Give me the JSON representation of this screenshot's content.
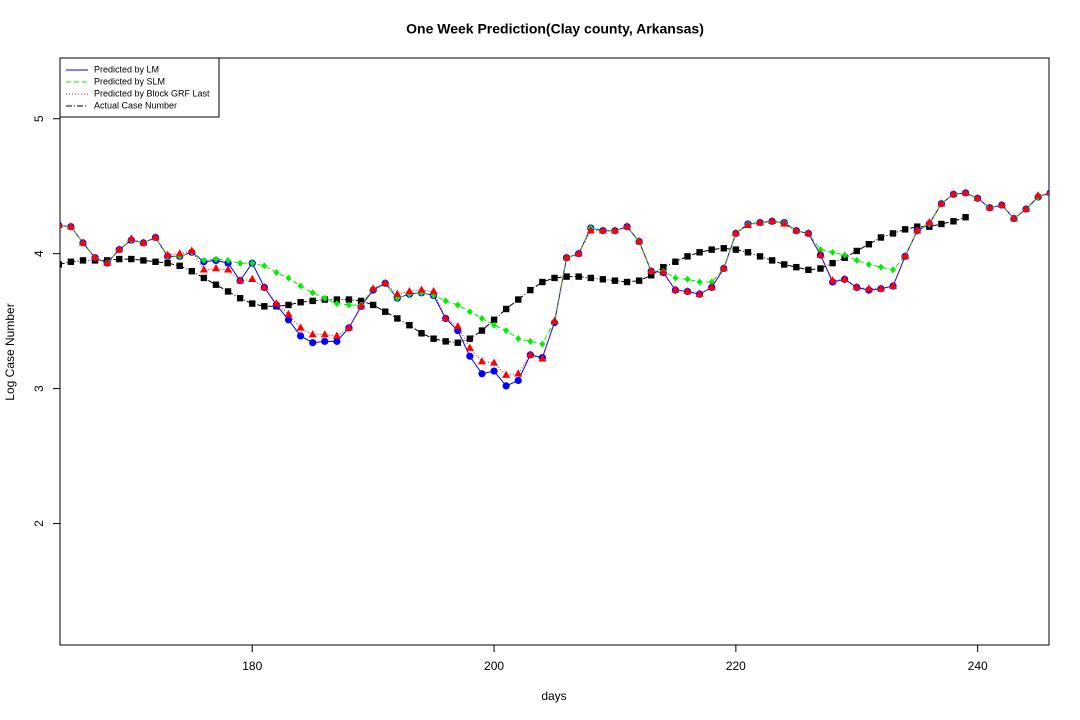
{
  "chart_data": {
    "type": "line",
    "title": "One Week Prediction(Clay county, Arkansas)",
    "xlabel": "days",
    "ylabel": "Log Case Number",
    "xlim": [
      164.1,
      245.9
    ],
    "ylim": [
      1.1,
      5.45
    ],
    "xticks": [
      180,
      200,
      220,
      240
    ],
    "yticks": [
      2,
      3,
      4,
      5
    ],
    "legend": "upper left",
    "x": [
      164,
      165,
      166,
      167,
      168,
      169,
      170,
      171,
      172,
      173,
      174,
      175,
      176,
      177,
      178,
      179,
      180,
      181,
      182,
      183,
      184,
      185,
      186,
      187,
      188,
      189,
      190,
      191,
      192,
      193,
      194,
      195,
      196,
      197,
      198,
      199,
      200,
      201,
      202,
      203,
      204,
      205,
      206,
      207,
      208,
      209,
      210,
      211,
      212,
      213,
      214,
      215,
      216,
      217,
      218,
      219,
      220,
      221,
      222,
      223,
      224,
      225,
      226,
      227,
      228,
      229,
      230,
      231,
      232,
      233,
      234,
      235,
      236,
      237,
      238,
      239,
      240,
      241,
      242,
      243,
      244,
      245,
      246
    ],
    "series": [
      {
        "name": "Predicted by LM",
        "color": "#0000ff",
        "linestyle": "solid",
        "marker": "circle",
        "values": [
          4.21,
          4.2,
          4.08,
          3.97,
          3.93,
          4.03,
          4.1,
          4.08,
          4.12,
          3.98,
          3.98,
          4.01,
          3.94,
          3.95,
          3.93,
          3.8,
          3.93,
          3.75,
          3.62,
          3.51,
          3.39,
          3.34,
          3.35,
          3.35,
          3.45,
          3.61,
          3.73,
          3.78,
          3.67,
          3.7,
          3.71,
          3.69,
          3.52,
          3.43,
          3.24,
          3.11,
          3.13,
          3.02,
          3.06,
          3.25,
          3.23,
          3.49,
          3.97,
          4.0,
          4.19,
          4.17,
          4.17,
          4.2,
          4.09,
          3.87,
          3.86,
          3.73,
          3.72,
          3.7,
          3.75,
          3.89,
          4.15,
          4.22,
          4.23,
          4.24,
          4.23,
          4.17,
          4.15,
          3.99,
          3.79,
          3.81,
          3.75,
          3.73,
          3.74,
          3.76,
          3.98,
          4.17,
          4.22,
          4.37,
          4.44,
          4.45,
          4.41,
          4.34,
          4.36,
          4.26,
          4.33,
          4.42,
          4.45
        ]
      },
      {
        "name": "Predicted by SLM",
        "color": "#00ee00",
        "linestyle": "dashed",
        "marker": "diamond",
        "values": [
          4.21,
          4.2,
          4.08,
          3.97,
          3.93,
          4.03,
          4.1,
          4.08,
          4.12,
          3.98,
          3.98,
          4.01,
          3.95,
          3.96,
          3.95,
          3.93,
          3.93,
          3.91,
          3.86,
          3.82,
          3.76,
          3.71,
          3.67,
          3.63,
          3.62,
          3.62,
          3.74,
          3.78,
          3.67,
          3.7,
          3.71,
          3.69,
          3.65,
          3.62,
          3.57,
          3.52,
          3.47,
          3.43,
          3.37,
          3.35,
          3.33,
          3.5,
          3.97,
          4.0,
          4.19,
          4.17,
          4.17,
          4.2,
          4.09,
          3.87,
          3.87,
          3.82,
          3.81,
          3.79,
          3.79,
          3.89,
          4.15,
          4.22,
          4.23,
          4.24,
          4.23,
          4.17,
          4.15,
          4.03,
          4.01,
          3.99,
          3.95,
          3.92,
          3.9,
          3.88,
          3.98,
          4.17,
          4.22,
          4.37,
          4.44,
          4.45,
          4.41,
          4.34,
          4.36,
          4.26,
          4.33,
          4.42,
          4.45
        ]
      },
      {
        "name": "Predicted by Block GRF Last",
        "color": "#ff0000",
        "linestyle": "dotted",
        "marker": "triangle",
        "values": [
          4.21,
          4.2,
          4.08,
          3.97,
          3.93,
          4.03,
          4.11,
          4.08,
          4.12,
          3.99,
          4.0,
          4.02,
          3.88,
          3.89,
          3.88,
          3.8,
          3.81,
          3.75,
          3.63,
          3.55,
          3.45,
          3.4,
          3.4,
          3.39,
          3.45,
          3.61,
          3.74,
          3.78,
          3.7,
          3.72,
          3.73,
          3.72,
          3.52,
          3.46,
          3.3,
          3.2,
          3.19,
          3.1,
          3.11,
          3.25,
          3.22,
          3.5,
          3.97,
          4.0,
          4.17,
          4.17,
          4.17,
          4.2,
          4.09,
          3.87,
          3.86,
          3.73,
          3.72,
          3.7,
          3.75,
          3.89,
          4.15,
          4.21,
          4.23,
          4.24,
          4.22,
          4.17,
          4.15,
          3.99,
          3.8,
          3.81,
          3.75,
          3.74,
          3.74,
          3.76,
          3.98,
          4.17,
          4.23,
          4.37,
          4.44,
          4.45,
          4.41,
          4.34,
          4.36,
          4.26,
          4.33,
          4.43,
          4.45
        ]
      },
      {
        "name": "Actual Case Number",
        "color": "#000000",
        "linestyle": "dashdot",
        "marker": "square",
        "values": [
          3.92,
          3.94,
          3.95,
          3.95,
          3.95,
          3.96,
          3.96,
          3.95,
          3.94,
          3.93,
          3.91,
          3.87,
          3.82,
          3.77,
          3.72,
          3.67,
          3.63,
          3.61,
          3.61,
          3.62,
          3.64,
          3.65,
          3.66,
          3.66,
          3.66,
          3.65,
          3.62,
          3.57,
          3.52,
          3.47,
          3.41,
          3.37,
          3.35,
          3.34,
          3.37,
          3.43,
          3.51,
          3.59,
          3.66,
          3.73,
          3.79,
          3.82,
          3.83,
          3.83,
          3.82,
          3.81,
          3.8,
          3.79,
          3.8,
          3.84,
          3.9,
          3.94,
          3.98,
          4.01,
          4.03,
          4.04,
          4.03,
          4.01,
          3.98,
          3.95,
          3.92,
          3.9,
          3.88,
          3.89,
          3.93,
          3.97,
          4.02,
          4.07,
          4.12,
          4.15,
          4.18,
          4.2,
          4.2,
          4.22,
          4.24,
          4.27,
          null,
          null,
          null,
          null,
          null,
          null,
          null
        ]
      }
    ]
  }
}
